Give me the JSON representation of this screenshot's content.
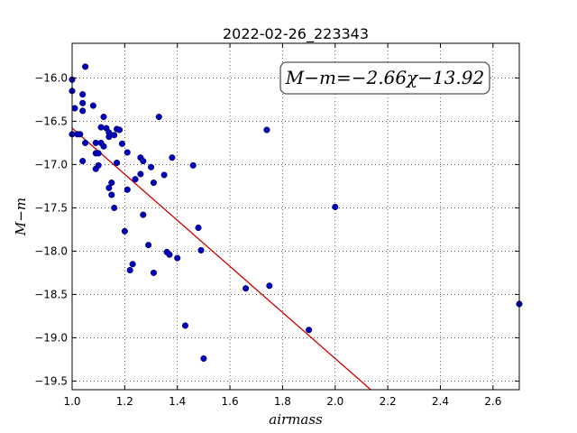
{
  "chart_data": {
    "type": "scatter",
    "title": "2022-02-26_223343",
    "xlabel": "airmass",
    "ylabel": "M−m",
    "xlim": [
      1.0,
      2.7
    ],
    "ylim": [
      -19.6,
      -15.6
    ],
    "xticks": [
      1.0,
      1.2,
      1.4,
      1.6,
      1.8,
      2.0,
      2.2,
      2.4,
      2.6
    ],
    "yticks": [
      -16.0,
      -16.5,
      -17.0,
      -17.5,
      -18.0,
      -18.5,
      -19.0,
      -19.5
    ],
    "xtick_labels": [
      "1.0",
      "1.2",
      "1.4",
      "1.6",
      "1.8",
      "2.0",
      "2.2",
      "2.4",
      "2.6"
    ],
    "ytick_labels": [
      "−16.0",
      "−16.5",
      "−17.0",
      "−17.5",
      "−18.0",
      "−18.5",
      "−19.0",
      "−19.5"
    ],
    "grid": true,
    "annotation": "M−m=−2.66χ−13.92",
    "fit": {
      "slope": -2.66,
      "intercept": -13.92,
      "color": "#cc0000"
    },
    "point_color": "#0000bb",
    "points": [
      [
        1.0,
        -16.02
      ],
      [
        1.0,
        -16.15
      ],
      [
        1.01,
        -16.35
      ],
      [
        1.0,
        -16.65
      ],
      [
        1.02,
        -16.65
      ],
      [
        1.03,
        -16.65
      ],
      [
        1.04,
        -16.38
      ],
      [
        1.04,
        -16.29
      ],
      [
        1.04,
        -16.19
      ],
      [
        1.05,
        -15.87
      ],
      [
        1.05,
        -16.75
      ],
      [
        1.04,
        -16.96
      ],
      [
        1.08,
        -16.32
      ],
      [
        1.09,
        -16.75
      ],
      [
        1.09,
        -16.87
      ],
      [
        1.1,
        -16.87
      ],
      [
        1.09,
        -17.05
      ],
      [
        1.11,
        -16.75
      ],
      [
        1.1,
        -17.01
      ],
      [
        1.11,
        -16.57
      ],
      [
        1.12,
        -16.79
      ],
      [
        1.12,
        -16.45
      ],
      [
        1.13,
        -16.58
      ],
      [
        1.14,
        -16.63
      ],
      [
        1.14,
        -16.68
      ],
      [
        1.16,
        -16.66
      ],
      [
        1.17,
        -16.59
      ],
      [
        1.18,
        -16.6
      ],
      [
        1.19,
        -16.76
      ],
      [
        1.17,
        -16.98
      ],
      [
        1.15,
        -17.21
      ],
      [
        1.14,
        -17.27
      ],
      [
        1.15,
        -17.35
      ],
      [
        1.21,
        -16.86
      ],
      [
        1.16,
        -17.5
      ],
      [
        1.21,
        -17.29
      ],
      [
        1.24,
        -17.17
      ],
      [
        1.26,
        -16.92
      ],
      [
        1.27,
        -16.96
      ],
      [
        1.26,
        -17.11
      ],
      [
        1.27,
        -17.58
      ],
      [
        1.2,
        -17.77
      ],
      [
        1.22,
        -18.22
      ],
      [
        1.23,
        -18.15
      ],
      [
        1.29,
        -17.93
      ],
      [
        1.3,
        -17.03
      ],
      [
        1.31,
        -17.21
      ],
      [
        1.33,
        -16.45
      ],
      [
        1.35,
        -17.12
      ],
      [
        1.36,
        -18.01
      ],
      [
        1.37,
        -18.04
      ],
      [
        1.38,
        -16.92
      ],
      [
        1.4,
        -18.08
      ],
      [
        1.31,
        -18.25
      ],
      [
        1.43,
        -18.86
      ],
      [
        1.46,
        -17.01
      ],
      [
        1.48,
        -17.73
      ],
      [
        1.49,
        -17.99
      ],
      [
        1.5,
        -19.24
      ],
      [
        1.66,
        -18.43
      ],
      [
        1.74,
        -16.6
      ],
      [
        1.75,
        -18.4
      ],
      [
        1.9,
        -18.91
      ],
      [
        2.0,
        -17.49
      ],
      [
        2.7,
        -18.61
      ]
    ]
  }
}
